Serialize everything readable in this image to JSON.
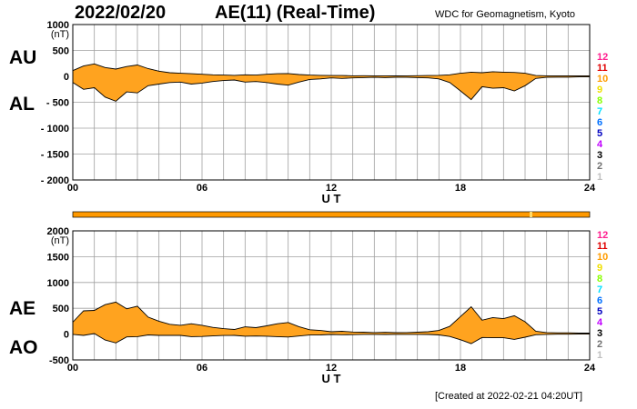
{
  "header": {
    "date": "2022/02/20",
    "title": "AE(11) (Real-Time)",
    "source": "WDC for Geomagnetism, Kyoto",
    "created": "[Created at 2022-02-21 04:20UT]"
  },
  "colors": {
    "fill": "#ffa31f",
    "grid": "#a0a0a0",
    "outline": "#000000",
    "coverage_bar": "#ff9900",
    "coverage_gap": "#ffd966",
    "station_counts": {
      "12": "#ff1f8f",
      "11": "#e00000",
      "10": "#ff9c00",
      "9": "#f0e000",
      "8": "#88ff00",
      "7": "#00e0ff",
      "6": "#0070ff",
      "5": "#0000c0",
      "4": "#c000ff",
      "3": "#000000",
      "2": "#707070",
      "1": "#c0c0c0"
    }
  },
  "station_count_labels": [
    "12",
    "11",
    "10",
    "9",
    "8",
    "7",
    "6",
    "5",
    "4",
    "3",
    "2",
    "1"
  ],
  "chart_data": [
    {
      "type": "area",
      "panel": "AU/AL",
      "left_labels": [
        "AU",
        "AL"
      ],
      "unit": "(nT)",
      "xlabel": "U T",
      "xlim": [
        0,
        24
      ],
      "x_ticks": [
        "00",
        "06",
        "12",
        "18",
        "24"
      ],
      "ylim": [
        -2000,
        1000
      ],
      "y_ticks": [
        "1000",
        "500",
        "0",
        "- 500",
        "- 1000",
        "- 1500",
        "- 2000"
      ],
      "grid": true,
      "series": [
        {
          "name": "AU",
          "x": [
            0,
            0.5,
            1,
            1.5,
            2,
            2.5,
            3,
            3.5,
            4,
            4.5,
            5,
            5.5,
            6,
            6.5,
            7,
            7.5,
            8,
            8.5,
            9,
            9.5,
            10,
            10.5,
            11,
            11.5,
            12,
            12.5,
            13,
            13.5,
            14,
            14.5,
            15,
            15.5,
            16,
            16.5,
            17,
            17.5,
            18,
            18.5,
            19,
            19.5,
            20,
            20.5,
            21,
            21.5,
            22,
            22.5,
            23,
            23.5,
            24
          ],
          "values": [
            110,
            200,
            240,
            170,
            140,
            190,
            220,
            150,
            100,
            70,
            60,
            50,
            40,
            30,
            25,
            20,
            30,
            25,
            40,
            50,
            55,
            35,
            25,
            20,
            15,
            15,
            10,
            12,
            10,
            10,
            8,
            10,
            12,
            15,
            20,
            30,
            60,
            80,
            70,
            90,
            80,
            75,
            60,
            15,
            10,
            10,
            10,
            10,
            10
          ]
        },
        {
          "name": "AL",
          "x": [
            0,
            0.5,
            1,
            1.5,
            2,
            2.5,
            3,
            3.5,
            4,
            4.5,
            5,
            5.5,
            6,
            6.5,
            7,
            7.5,
            8,
            8.5,
            9,
            9.5,
            10,
            10.5,
            11,
            11.5,
            12,
            12.5,
            13,
            13.5,
            14,
            14.5,
            15,
            15.5,
            16,
            16.5,
            17,
            17.5,
            18,
            18.5,
            19,
            19.5,
            20,
            20.5,
            21,
            21.5,
            22,
            22.5,
            23,
            23.5,
            24
          ],
          "values": [
            -120,
            -250,
            -220,
            -400,
            -480,
            -300,
            -320,
            -180,
            -150,
            -120,
            -110,
            -150,
            -130,
            -100,
            -80,
            -70,
            -110,
            -100,
            -120,
            -150,
            -170,
            -110,
            -60,
            -50,
            -30,
            -40,
            -30,
            -25,
            -20,
            -25,
            -20,
            -20,
            -25,
            -30,
            -50,
            -120,
            -280,
            -450,
            -200,
            -230,
            -220,
            -280,
            -180,
            -40,
            -20,
            -15,
            -15,
            -10,
            -10
          ]
        }
      ]
    },
    {
      "type": "area",
      "panel": "AE/AO",
      "left_labels": [
        "AE",
        "AO"
      ],
      "unit": "(nT)",
      "xlabel": "U T",
      "xlim": [
        0,
        24
      ],
      "x_ticks": [
        "00",
        "06",
        "12",
        "18",
        "24"
      ],
      "ylim": [
        -500,
        2000
      ],
      "y_ticks": [
        "2000",
        "1500",
        "1000",
        "500",
        "0",
        "-500"
      ],
      "grid": true,
      "series": [
        {
          "name": "AE",
          "x": [
            0,
            0.5,
            1,
            1.5,
            2,
            2.5,
            3,
            3.5,
            4,
            4.5,
            5,
            5.5,
            6,
            6.5,
            7,
            7.5,
            8,
            8.5,
            9,
            9.5,
            10,
            10.5,
            11,
            11.5,
            12,
            12.5,
            13,
            13.5,
            14,
            14.5,
            15,
            15.5,
            16,
            16.5,
            17,
            17.5,
            18,
            18.5,
            19,
            19.5,
            20,
            20.5,
            21,
            21.5,
            22,
            22.5,
            23,
            23.5,
            24
          ],
          "values": [
            230,
            450,
            460,
            570,
            620,
            490,
            540,
            330,
            250,
            190,
            170,
            200,
            170,
            130,
            105,
            90,
            140,
            125,
            160,
            200,
            225,
            145,
            85,
            70,
            45,
            55,
            40,
            37,
            30,
            35,
            28,
            30,
            37,
            45,
            70,
            150,
            340,
            530,
            270,
            320,
            300,
            355,
            240,
            55,
            30,
            25,
            25,
            20,
            20
          ]
        },
        {
          "name": "AO",
          "x": [
            0,
            0.5,
            1,
            1.5,
            2,
            2.5,
            3,
            3.5,
            4,
            4.5,
            5,
            5.5,
            6,
            6.5,
            7,
            7.5,
            8,
            8.5,
            9,
            9.5,
            10,
            10.5,
            11,
            11.5,
            12,
            12.5,
            13,
            13.5,
            14,
            14.5,
            15,
            15.5,
            16,
            16.5,
            17,
            17.5,
            18,
            18.5,
            19,
            19.5,
            20,
            20.5,
            21,
            21.5,
            22,
            22.5,
            23,
            23.5,
            24
          ],
          "values": [
            -5,
            -25,
            10,
            -115,
            -170,
            -55,
            -50,
            -15,
            -25,
            -25,
            -25,
            -50,
            -45,
            -35,
            -27,
            -25,
            -40,
            -37,
            -40,
            -50,
            -57,
            -37,
            -17,
            -15,
            -7,
            -12,
            -10,
            -6,
            -5,
            -7,
            -6,
            -5,
            -6,
            -7,
            -15,
            -45,
            -110,
            -185,
            -65,
            -70,
            -70,
            -102,
            -60,
            -12,
            -5,
            -2,
            -2,
            0,
            0
          ]
        }
      ]
    }
  ]
}
